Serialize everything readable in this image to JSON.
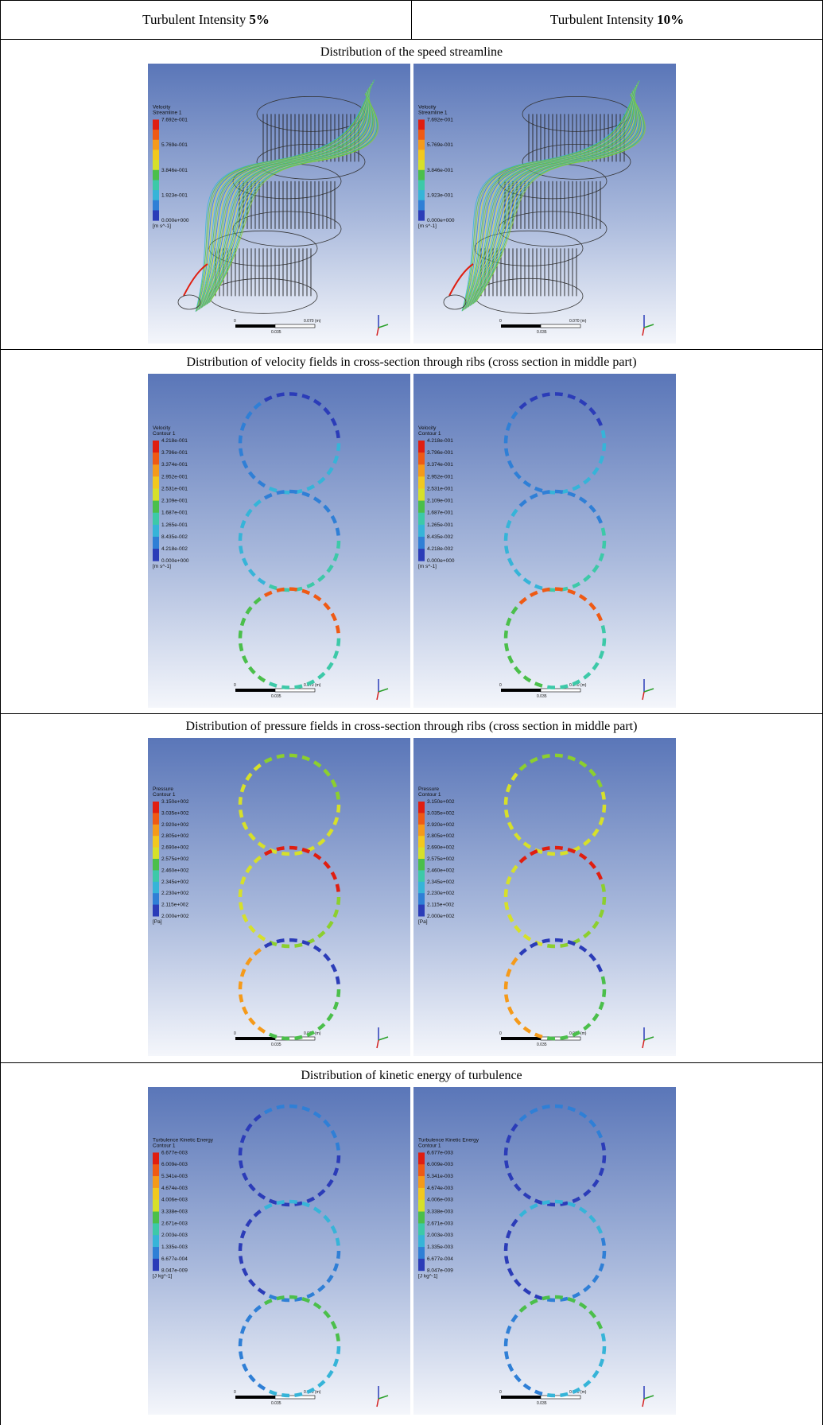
{
  "header": {
    "cells": [
      {
        "text": "Turbulent Intensity",
        "value": "5%"
      },
      {
        "text": "Turbulent Intensity",
        "value": "10%"
      }
    ]
  },
  "rows": [
    {
      "title": "Distribution of the speed streamline",
      "legend": {
        "lines": [
          "Velocity",
          "Streamline 1"
        ],
        "labels": [
          "7.692e-001",
          "5.769e-001",
          "3.846e-001",
          "1.923e-001",
          "0.000e+000"
        ],
        "unit": "[m s^-1]"
      }
    },
    {
      "title": "Distribution of velocity fields in cross-section through ribs (cross section in middle part)",
      "legend": {
        "lines": [
          "Velocity",
          "Contour 1"
        ],
        "labels": [
          "4.218e-001",
          "3.796e-001",
          "3.374e-001",
          "2.952e-001",
          "2.531e-001",
          "2.109e-001",
          "1.687e-001",
          "1.265e-001",
          "8.435e-002",
          "4.218e-002",
          "0.000e+000"
        ],
        "unit": "[m s^-1]"
      }
    },
    {
      "title": "Distribution of pressure fields in cross-section through ribs (cross section in middle part)",
      "legend": {
        "lines": [
          "Pressure",
          "Contour 1"
        ],
        "labels": [
          "3.150e+002",
          "3.035e+002",
          "2.920e+002",
          "2.805e+002",
          "2.690e+002",
          "2.575e+002",
          "2.460e+002",
          "2.345e+002",
          "2.230e+002",
          "2.115e+002",
          "2.000e+002"
        ],
        "unit": "[Pa]"
      }
    },
    {
      "title": "Distribution of kinetic energy of turbulence",
      "legend": {
        "lines": [
          "Turbulence Kinetic Energy",
          "Contour 1"
        ],
        "labels": [
          "6.677e-003",
          "6.009e-003",
          "5.341e-003",
          "4.674e-003",
          "4.006e-003",
          "3.338e-003",
          "2.671e-003",
          "2.003e-003",
          "1.335e-003",
          "6.677e-004",
          "8.047e-009"
        ],
        "unit": "[J kg^-1]"
      }
    }
  ],
  "scale_bar": {
    "start": "0",
    "end": "0.070 (m)",
    "mid": "0.035"
  }
}
